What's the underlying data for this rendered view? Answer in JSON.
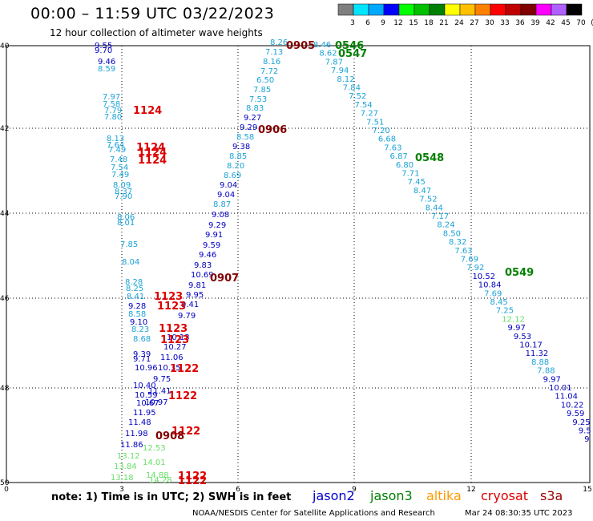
{
  "header": {
    "title": "00:00 – 11:59 UTC 03/22/2023",
    "subtitle": "12 hour collection of altimeter wave heights"
  },
  "colorbar": {
    "ticks": [
      "3",
      "6",
      "9",
      "12",
      "15",
      "18",
      "21",
      "24",
      "27",
      "30",
      "33",
      "36",
      "39",
      "42",
      "45",
      "70",
      "(ft)"
    ],
    "colors": [
      "#7f7f7f",
      "#00e5ff",
      "#00a8ff",
      "#0000ff",
      "#00ff00",
      "#00c000",
      "#008000",
      "#ffff00",
      "#ffc000",
      "#ff8000",
      "#ff0000",
      "#c00000",
      "#800000",
      "#ff00ff",
      "#b060ff",
      "#000000"
    ]
  },
  "axes": {
    "x_ticks": [
      "0",
      "3",
      "6",
      "9",
      "12",
      "15"
    ],
    "y_ticks": [
      "40",
      "42",
      "44",
      "46",
      "48",
      "50"
    ]
  },
  "footer": {
    "note": "note: 1) Time is in UTC; 2) SWH is in feet",
    "credit": "NOAA/NESDIS Center for Satellite Applications and Research",
    "timestamp": "Mar 24 08:30:35 UTC 2023"
  },
  "satellites": [
    {
      "name": "jason2",
      "color": "#0000cc"
    },
    {
      "name": "jason3",
      "color": "#008000"
    },
    {
      "name": "altika",
      "color": "#ff9900"
    },
    {
      "name": "cryosat",
      "color": "#dd0000"
    },
    {
      "name": "s3a",
      "color": "#990000"
    }
  ],
  "tracks": [
    {
      "id": "track-0905-up",
      "color": "#1ba3d6",
      "labels": [
        {
          "v": "8.26"
        },
        {
          "v": "7.13"
        },
        {
          "v": "8.16"
        },
        {
          "v": "7.72"
        },
        {
          "v": "6.50"
        },
        {
          "v": "7.85"
        },
        {
          "v": "7.53"
        },
        {
          "v": "8.83"
        },
        {
          "v": "9.27"
        },
        {
          "v": "9.29"
        },
        {
          "v": "8.58"
        },
        {
          "v": "9.38"
        },
        {
          "v": "8.85"
        },
        {
          "v": "8.20"
        },
        {
          "v": "8.69"
        },
        {
          "v": "9.04"
        },
        {
          "v": "9.04"
        },
        {
          "v": "8.87"
        },
        {
          "v": "9.08"
        },
        {
          "v": "9.29"
        },
        {
          "v": "9.91"
        },
        {
          "v": "9.59"
        },
        {
          "v": "9.46"
        },
        {
          "v": "9.83"
        },
        {
          "v": "10.69"
        },
        {
          "v": "9.81"
        },
        {
          "v": "9.95"
        },
        {
          "v": "9.41"
        },
        {
          "v": "9.79"
        },
        {
          "v": "10.13"
        },
        {
          "v": "10.27"
        },
        {
          "v": "11.06"
        },
        {
          "v": "10.35"
        },
        {
          "v": "9.75"
        },
        {
          "v": "11.41"
        },
        {
          "v": "10.97"
        }
      ]
    },
    {
      "id": "track-0546-down",
      "color": "#1ba3d6",
      "labels": [
        {
          "v": "8.46"
        },
        {
          "v": "8.62"
        },
        {
          "v": "7.87"
        },
        {
          "v": "7.94"
        },
        {
          "v": "8.12"
        },
        {
          "v": "7.84"
        },
        {
          "v": "7.52"
        },
        {
          "v": "7.54"
        },
        {
          "v": "7.27"
        },
        {
          "v": "7.51"
        },
        {
          "v": "7.20"
        },
        {
          "v": "6.68"
        },
        {
          "v": "7.63"
        },
        {
          "v": "6.87"
        },
        {
          "v": "6.80"
        },
        {
          "v": "7.71"
        },
        {
          "v": "7.45"
        },
        {
          "v": "8.47"
        },
        {
          "v": "7.52"
        },
        {
          "v": "8.44"
        },
        {
          "v": "7.17"
        },
        {
          "v": "8.24"
        },
        {
          "v": "8.50"
        },
        {
          "v": "8.32"
        },
        {
          "v": "7.63"
        },
        {
          "v": "7.69"
        },
        {
          "v": "7.92"
        },
        {
          "v": "10.52"
        },
        {
          "v": "10.84"
        },
        {
          "v": "7.69"
        },
        {
          "v": "8.45"
        },
        {
          "v": "7.25"
        },
        {
          "v": "12.12"
        },
        {
          "v": "9.97"
        },
        {
          "v": "9.53"
        },
        {
          "v": "10.17"
        },
        {
          "v": "11.32"
        },
        {
          "v": "8.88"
        },
        {
          "v": "7.88"
        },
        {
          "v": "9.97"
        },
        {
          "v": "10.01"
        },
        {
          "v": "11.04"
        },
        {
          "v": "10.22"
        },
        {
          "v": "9.59"
        },
        {
          "v": "9.25"
        },
        {
          "v": "9.5"
        },
        {
          "v": "9"
        }
      ]
    },
    {
      "id": "track-1124-left",
      "color": "#1ba3d6",
      "labels": [
        {
          "v": "9.55"
        },
        {
          "v": "9.70"
        },
        {
          "v": "9.46"
        },
        {
          "v": "8.59"
        },
        {
          "v": "7.97"
        },
        {
          "v": "7.58"
        },
        {
          "v": "7.79"
        },
        {
          "v": "7.80"
        },
        {
          "v": "8.13"
        },
        {
          "v": "7.64"
        },
        {
          "v": "7.49"
        },
        {
          "v": "7.48"
        },
        {
          "v": "7.54"
        },
        {
          "v": "7.49"
        },
        {
          "v": "8.09"
        },
        {
          "v": "8.37"
        },
        {
          "v": "7.90"
        },
        {
          "v": "8.06"
        },
        {
          "v": "8.01"
        },
        {
          "v": "7.85"
        },
        {
          "v": "8.04"
        },
        {
          "v": "8.28"
        },
        {
          "v": "8.25"
        },
        {
          "v": "8.41"
        },
        {
          "v": "9.28"
        },
        {
          "v": "8.58"
        },
        {
          "v": "9.10"
        },
        {
          "v": "8.23"
        },
        {
          "v": "8.68"
        },
        {
          "v": "9.39"
        },
        {
          "v": "9.71"
        },
        {
          "v": "10.96"
        },
        {
          "v": "10.40"
        },
        {
          "v": "10.59"
        },
        {
          "v": "10.67"
        },
        {
          "v": "11.95"
        },
        {
          "v": "11.48"
        },
        {
          "v": "11.98"
        },
        {
          "v": "11.86"
        },
        {
          "v": "13.12"
        },
        {
          "v": "13.84"
        },
        {
          "v": "13.18"
        },
        {
          "v": "12.53"
        },
        {
          "v": "14.01"
        },
        {
          "v": "14.88"
        },
        {
          "v": "14.28"
        }
      ]
    }
  ],
  "pass_labels": [
    {
      "text": "0905",
      "color": "#800000"
    },
    {
      "text": "0546",
      "color": "#008000"
    },
    {
      "text": "0547",
      "color": "#008000"
    },
    {
      "text": "1124",
      "color": "#dd0000"
    },
    {
      "text": "0906",
      "color": "#800000"
    },
    {
      "text": "1124",
      "color": "#dd0000"
    },
    {
      "text": "1124",
      "color": "#dd0000"
    },
    {
      "text": "1124",
      "color": "#dd0000"
    },
    {
      "text": "0548",
      "color": "#008000"
    },
    {
      "text": "0907",
      "color": "#800000"
    },
    {
      "text": "0549",
      "color": "#008000"
    },
    {
      "text": "1123",
      "color": "#dd0000"
    },
    {
      "text": "1123",
      "color": "#dd0000"
    },
    {
      "text": "1123",
      "color": "#dd0000"
    },
    {
      "text": "1123",
      "color": "#dd0000"
    },
    {
      "text": "1122",
      "color": "#dd0000"
    },
    {
      "text": "1122",
      "color": "#dd0000"
    },
    {
      "text": "1122",
      "color": "#dd0000"
    },
    {
      "text": "0908",
      "color": "#800000"
    },
    {
      "text": "1122",
      "color": "#dd0000"
    },
    {
      "text": "1122",
      "color": "#dd0000"
    }
  ]
}
